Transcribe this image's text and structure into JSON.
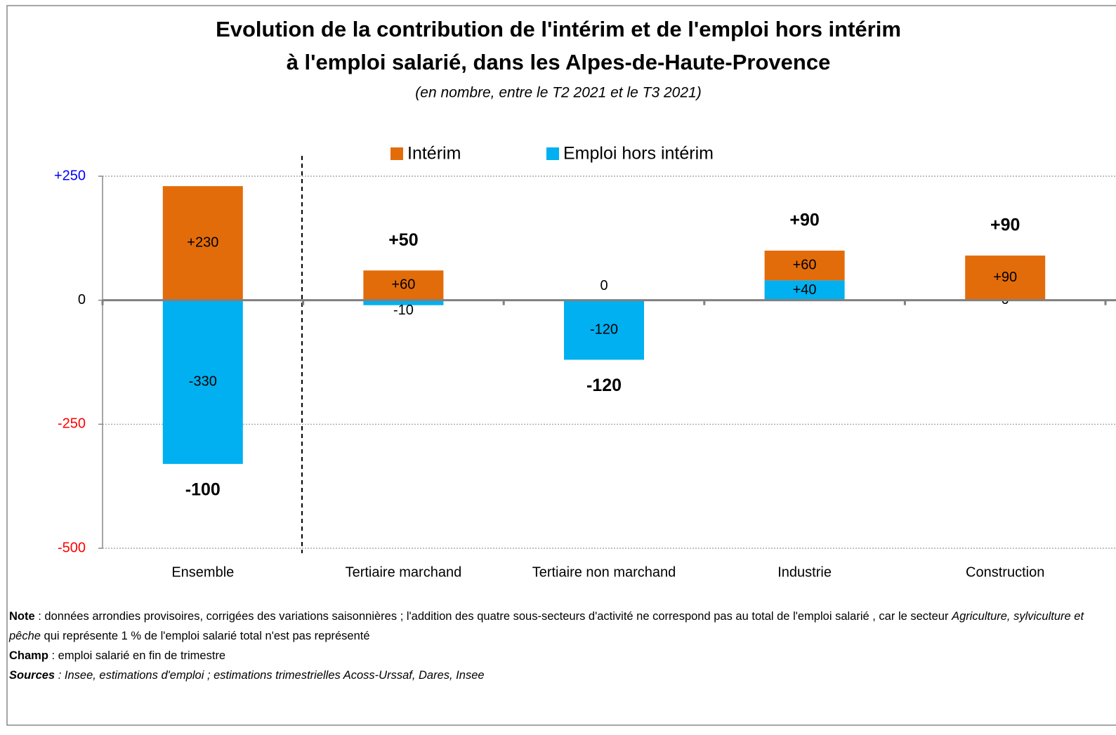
{
  "chart_data": {
    "type": "bar",
    "title": [
      "Evolution de la contribution de l'intérim et de l'emploi hors intérim",
      "à l'emploi salarié, dans les Alpes-de-Haute-Provence"
    ],
    "subtitle": "(en nombre, entre le T2 2021 et le T3 2021)",
    "categories": [
      "Ensemble",
      "Tertiaire marchand",
      "Tertiaire non marchand",
      "Industrie",
      "Construction"
    ],
    "series": [
      {
        "name": "Intérim",
        "color": "#e36c0a",
        "values": [
          230,
          60,
          0,
          60,
          90
        ],
        "value_labels": [
          "+230",
          "+60",
          "0",
          "+60",
          "+90"
        ]
      },
      {
        "name": "Emploi hors intérim",
        "color": "#00b0f0",
        "values": [
          -330,
          -10,
          -120,
          40,
          0
        ],
        "value_labels": [
          "-330",
          "-10",
          "-120",
          "+40",
          "0"
        ]
      }
    ],
    "totals": {
      "values": [
        -100,
        50,
        -120,
        90,
        90
      ],
      "value_labels": [
        "-100",
        "+50",
        "-120",
        "+90",
        "+90"
      ]
    },
    "ylim": [
      -500,
      250
    ],
    "yticks": [
      {
        "value": 250,
        "label": "+250"
      },
      0,
      -250,
      -500
    ],
    "grid": true,
    "stacked": true,
    "legend": "top"
  },
  "notes": {
    "note": {
      "label": "Note",
      "text": " : données arrondies provisoires, corrigées des variations saisonnières ; l'addition des quatre sous-secteurs d'activité ne correspond pas au total de l'emploi salarié , car le secteur ",
      "italic": "Agriculture, sylviculture et pêche",
      "text2": " qui représente 1 % de l'emploi salarié total n'est pas représenté"
    },
    "champ": {
      "label": "Champ",
      "text": " : emploi salarié en fin de trimestre"
    },
    "sources": {
      "label": "Sources",
      "text": " : Insee, estimations d'emploi ; estimations trimestrielles Acoss-Urssaf, Dares, Insee"
    }
  }
}
